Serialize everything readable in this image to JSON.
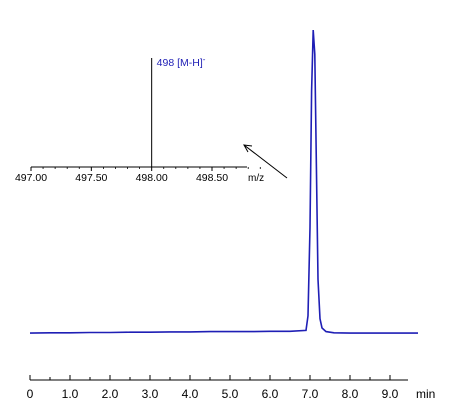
{
  "chart_data": [
    {
      "type": "line",
      "title": "",
      "xlabel": "",
      "ylabel": "",
      "x_unit_label": "min",
      "xlim": [
        0,
        9.7
      ],
      "ylim": [
        0,
        1.0
      ],
      "x_ticks": [
        "0",
        "1.0",
        "2.0",
        "3.0",
        "4.0",
        "5.0",
        "6.0",
        "7.0",
        "8.0",
        "9.0"
      ],
      "grid": false,
      "series": [
        {
          "color": "#1f1fb5",
          "x": [
            0,
            0.5,
            1.0,
            1.5,
            2.0,
            2.5,
            3.0,
            3.5,
            4.0,
            4.5,
            5.0,
            5.5,
            6.0,
            6.5,
            6.9,
            6.95,
            7.0,
            7.04,
            7.08,
            7.12,
            7.16,
            7.2,
            7.25,
            7.3,
            7.4,
            7.6,
            8.0,
            8.5,
            9.0,
            9.5,
            9.7
          ],
          "y": [
            0.003,
            0.004,
            0.004,
            0.005,
            0.005,
            0.006,
            0.006,
            0.007,
            0.007,
            0.008,
            0.008,
            0.008,
            0.009,
            0.009,
            0.012,
            0.06,
            0.35,
            0.8,
            1.0,
            0.92,
            0.55,
            0.18,
            0.05,
            0.02,
            0.008,
            0.004,
            0.003,
            0.003,
            0.003,
            0.003,
            0.003
          ]
        }
      ]
    },
    {
      "type": "bar",
      "title": "",
      "xlabel": "m/z",
      "ylabel": "",
      "xlim": [
        497.0,
        499.0
      ],
      "x_ticks": [
        "497.00",
        "497.50",
        "498.00",
        "498.50"
      ],
      "peaks": [
        {
          "mz": 498.0,
          "intensity": 1.0,
          "label": "498 [M-H]",
          "label_sup": "-"
        }
      ]
    }
  ]
}
